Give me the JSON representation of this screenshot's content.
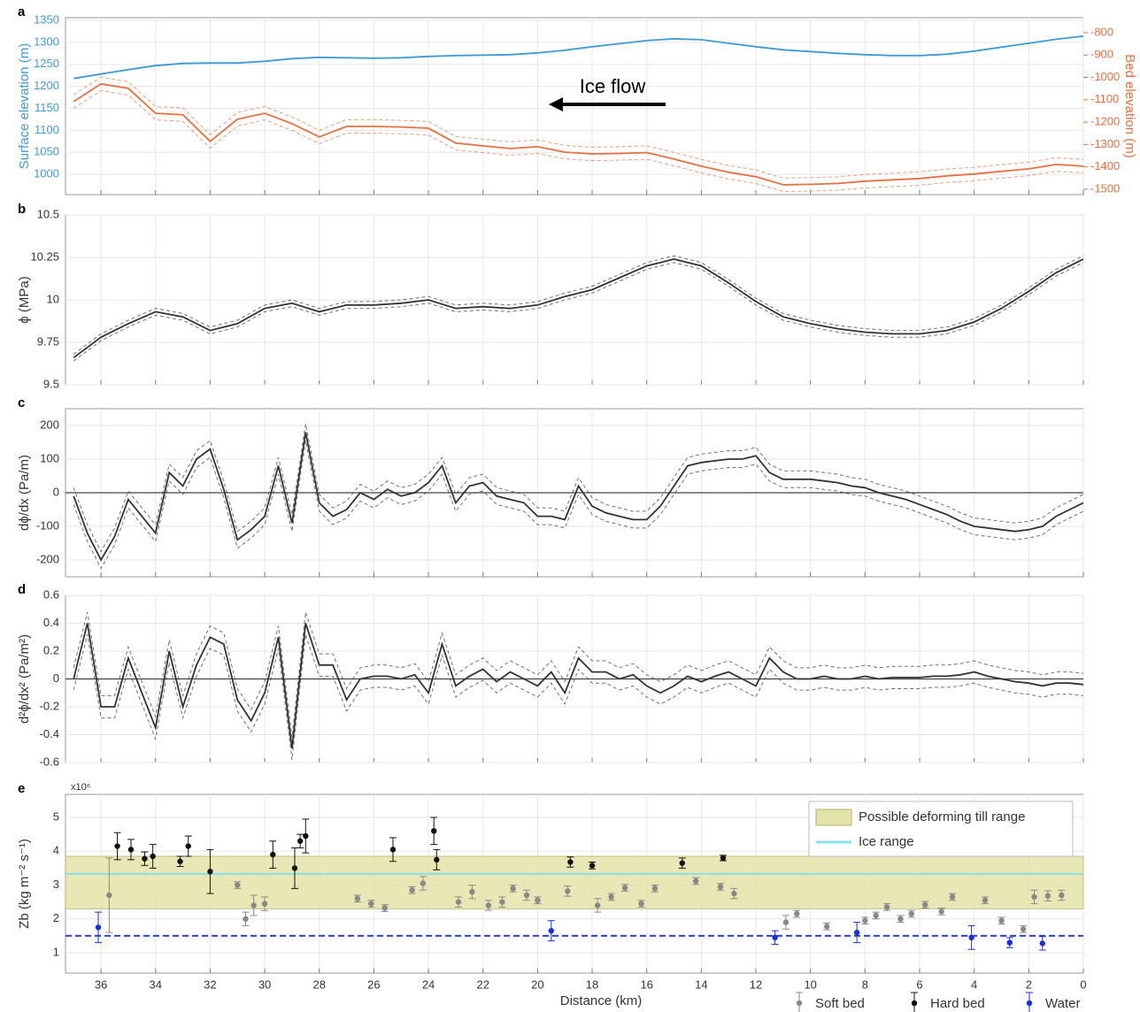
{
  "chart_data": [
    {
      "type": "line",
      "y_label": "Surface elevation (m)",
      "y2_label": "Bed elevation (m)",
      "panel": "a",
      "annotation": "Ice flow",
      "x": [
        37,
        36,
        35,
        34,
        33,
        32,
        31,
        30,
        29,
        28,
        27,
        26,
        25,
        24,
        23,
        22,
        21,
        20,
        19,
        18,
        17,
        16,
        15,
        14,
        13,
        12,
        11,
        10,
        9,
        8,
        7,
        6,
        5,
        4,
        3,
        2,
        1,
        0
      ],
      "series": [
        {
          "axis": "y",
          "color": "#3d9bd6",
          "values": [
            1218,
            1228,
            1238,
            1247,
            1252,
            1253,
            1253,
            1257,
            1263,
            1266,
            1265,
            1264,
            1265,
            1268,
            1270,
            1271,
            1272,
            1276,
            1282,
            1290,
            1297,
            1304,
            1308,
            1306,
            1298,
            1290,
            1283,
            1279,
            1275,
            1272,
            1270,
            1270,
            1273,
            1280,
            1289,
            1298,
            1307,
            1314
          ]
        },
        {
          "axis": "y2",
          "color": "#e8703f",
          "uncertainty": 30,
          "values": [
            -1108,
            -1029,
            -1049,
            -1160,
            -1167,
            -1286,
            -1187,
            -1160,
            -1207,
            -1266,
            -1219,
            -1219,
            -1222,
            -1227,
            -1294,
            -1306,
            -1318,
            -1310,
            -1334,
            -1342,
            -1340,
            -1336,
            -1365,
            -1397,
            -1424,
            -1444,
            -1480,
            -1478,
            -1474,
            -1464,
            -1458,
            -1452,
            -1440,
            -1432,
            -1420,
            -1409,
            -1389,
            -1397
          ]
        }
      ],
      "ylim": [
        954,
        1356
      ],
      "yticks": [
        1000,
        1050,
        1100,
        1150,
        1200,
        1250,
        1300,
        1350
      ],
      "y2lim": [
        -1524,
        -733
      ],
      "y2ticks": [
        -1500,
        -1400,
        -1300,
        -1200,
        -1100,
        -1000,
        -900,
        -800
      ]
    },
    {
      "type": "line",
      "y_label": "ϕ (MPa)",
      "panel": "b",
      "x": [
        37,
        36,
        35,
        34,
        33,
        32,
        31,
        30,
        29,
        28,
        27,
        26,
        25,
        24,
        23,
        22,
        21,
        20,
        19,
        18,
        17,
        16,
        15,
        14,
        13,
        12,
        11,
        10,
        9,
        8,
        7,
        6,
        5,
        4,
        3,
        2,
        1,
        0
      ],
      "series": [
        {
          "color": "#333333",
          "uncertainty": 0.02,
          "values": [
            9.66,
            9.78,
            9.86,
            9.93,
            9.9,
            9.82,
            9.86,
            9.95,
            9.98,
            9.93,
            9.97,
            9.97,
            9.98,
            10.0,
            9.95,
            9.96,
            9.95,
            9.97,
            10.02,
            10.06,
            10.13,
            10.2,
            10.24,
            10.2,
            10.1,
            9.99,
            9.9,
            9.86,
            9.83,
            9.81,
            9.8,
            9.8,
            9.82,
            9.87,
            9.95,
            10.05,
            10.16,
            10.24
          ]
        }
      ],
      "ylim": [
        9.5,
        10.5
      ],
      "yticks": [
        9.5,
        9.75,
        10,
        10.25,
        10.5
      ]
    },
    {
      "type": "line",
      "y_label": "dϕ/dx (Pa/m)",
      "panel": "c",
      "x": [
        37,
        36.5,
        36,
        35.5,
        35,
        34.5,
        34,
        33.5,
        33,
        32.5,
        32,
        31.5,
        31,
        30.5,
        30,
        29.5,
        29,
        28.5,
        28,
        27.5,
        27,
        26.5,
        26,
        25.5,
        25,
        24.5,
        24,
        23.5,
        23,
        22.5,
        22,
        21.5,
        21,
        20.5,
        20,
        19.5,
        19,
        18.5,
        18,
        17.5,
        17,
        16.5,
        16,
        15.5,
        15,
        14.5,
        14,
        13.5,
        13,
        12.5,
        12,
        11.5,
        11,
        10.5,
        10,
        9.5,
        9,
        8.5,
        8,
        7.5,
        7,
        6.5,
        6,
        5.5,
        5,
        4.5,
        4,
        3.5,
        3,
        2.5,
        2,
        1.5,
        1,
        0.5,
        0
      ],
      "series": [
        {
          "color": "#333333",
          "uncertainty": 25,
          "values": [
            -10,
            -120,
            -200,
            -130,
            -20,
            -70,
            -120,
            60,
            20,
            100,
            130,
            10,
            -140,
            -110,
            -70,
            80,
            -90,
            180,
            -30,
            -70,
            -50,
            0,
            -20,
            10,
            -10,
            0,
            30,
            80,
            -30,
            20,
            30,
            -10,
            -20,
            -30,
            -70,
            -70,
            -80,
            20,
            -40,
            -60,
            -70,
            -80,
            -80,
            -40,
            20,
            80,
            90,
            95,
            100,
            100,
            110,
            60,
            40,
            40,
            40,
            35,
            30,
            20,
            15,
            0,
            -10,
            -20,
            -35,
            -50,
            -65,
            -85,
            -100,
            -105,
            -110,
            -115,
            -110,
            -100,
            -70,
            -50,
            -30
          ]
        }
      ],
      "ylim": [
        -250,
        250
      ],
      "yticks": [
        -200,
        -100,
        0,
        100,
        200
      ]
    },
    {
      "type": "line",
      "y_label": "d²ϕ/dx² (Pa/m²)",
      "panel": "d",
      "x": [
        37,
        36.5,
        36,
        35.5,
        35,
        34.5,
        34,
        33.5,
        33,
        32.5,
        32,
        31.5,
        31,
        30.5,
        30,
        29.5,
        29,
        28.5,
        28,
        27.5,
        27,
        26.5,
        26,
        25.5,
        25,
        24.5,
        24,
        23.5,
        23,
        22.5,
        22,
        21.5,
        21,
        20.5,
        20,
        19.5,
        19,
        18.5,
        18,
        17.5,
        17,
        16.5,
        16,
        15.5,
        15,
        14.5,
        14,
        13.5,
        13,
        12.5,
        12,
        11.5,
        11,
        10.5,
        10,
        9.5,
        9,
        8.5,
        8,
        7.5,
        7,
        6.5,
        6,
        5.5,
        5,
        4.5,
        4,
        3.5,
        3,
        2.5,
        2,
        1.5,
        1,
        0.5,
        0
      ],
      "series": [
        {
          "color": "#333333",
          "uncertainty": 0.08,
          "values": [
            0,
            0.4,
            -0.2,
            -0.2,
            0.15,
            -0.1,
            -0.35,
            0.2,
            -0.2,
            0.1,
            0.3,
            0.25,
            -0.15,
            -0.3,
            -0.1,
            0.3,
            -0.5,
            0.4,
            0.1,
            0.1,
            -0.15,
            0,
            0.02,
            0.02,
            0,
            0.03,
            -0.1,
            0.25,
            -0.05,
            0.02,
            0.07,
            -0.02,
            0.05,
            0,
            -0.05,
            0.05,
            -0.1,
            0.15,
            0.05,
            0.05,
            0,
            0.03,
            -0.05,
            -0.1,
            -0.05,
            0.02,
            -0.02,
            0.02,
            0.05,
            0,
            -0.05,
            0.15,
            0.05,
            0,
            0,
            0.02,
            0,
            0,
            0.02,
            0,
            0.01,
            0.01,
            0.01,
            0.02,
            0.02,
            0.03,
            0.05,
            0.02,
            0,
            -0.02,
            -0.03,
            -0.05,
            -0.03,
            -0.03,
            -0.04
          ]
        }
      ],
      "ylim": [
        -0.6,
        0.6
      ],
      "yticks": [
        -0.6,
        -0.4,
        -0.2,
        0,
        0.2,
        0.4,
        0.6
      ]
    },
    {
      "type": "scatter",
      "y_label": "Zb (kg m⁻² s⁻¹)",
      "panel": "e",
      "multiplier": "x10⁶",
      "x_label": "Distance (km)",
      "xlim": [
        37.3,
        0
      ],
      "xticks": [
        36,
        34,
        32,
        30,
        28,
        26,
        24,
        22,
        20,
        18,
        16,
        14,
        12,
        10,
        8,
        6,
        4,
        2,
        0
      ],
      "ylim": [
        0.4,
        5.68
      ],
      "yticks": [
        1,
        2,
        3,
        4,
        5
      ],
      "bands": [
        {
          "label": "Possible deforming till range",
          "range": [
            2.3,
            3.85
          ],
          "color": "#e4e3a8"
        }
      ],
      "reference_lines": [
        {
          "label": "Ice range",
          "value": 3.33,
          "color": "#86e0ee"
        },
        {
          "value": 1.5,
          "color": "#2b3fe8",
          "dashed": true
        }
      ],
      "series": [
        {
          "name": "Soft bed",
          "color": "#888888",
          "x": [
            35.7,
            31,
            30.7,
            30.4,
            30,
            26.6,
            26.1,
            25.6,
            24.6,
            24.2,
            22.9,
            22.4,
            21.8,
            21.3,
            20.9,
            20.4,
            20,
            18.9,
            17.8,
            17.3,
            16.8,
            16.2,
            15.7,
            14.2,
            13.3,
            12.8,
            10.9,
            10.5,
            9.4,
            8,
            7.6,
            7.2,
            6.7,
            6.3,
            5.8,
            5.2,
            4.8,
            3.6,
            3,
            2.2,
            1.8,
            1.3,
            0.8
          ],
          "values": [
            2.7,
            3.0,
            2.0,
            2.4,
            2.45,
            2.6,
            2.45,
            2.32,
            2.85,
            3.05,
            2.5,
            2.8,
            2.4,
            2.5,
            2.9,
            2.7,
            2.55,
            2.82,
            2.4,
            2.65,
            2.92,
            2.45,
            2.9,
            3.12,
            2.95,
            2.75,
            1.9,
            2.15,
            1.78,
            1.95,
            2.1,
            2.35,
            2.0,
            2.15,
            2.42,
            2.22,
            2.65,
            2.55,
            1.95,
            1.7,
            2.65,
            2.68,
            2.7
          ],
          "errors": [
            1.1,
            0.1,
            0.2,
            0.3,
            0.2,
            0.1,
            0.1,
            0.1,
            0.1,
            0.2,
            0.15,
            0.2,
            0.15,
            0.15,
            0.1,
            0.15,
            0.1,
            0.15,
            0.2,
            0.1,
            0.1,
            0.1,
            0.1,
            0.1,
            0.1,
            0.15,
            0.2,
            0.1,
            0.1,
            0.1,
            0.1,
            0.1,
            0.1,
            0.1,
            0.1,
            0.1,
            0.1,
            0.1,
            0.1,
            0.1,
            0.2,
            0.15,
            0.15
          ]
        },
        {
          "name": "Hard bed",
          "color": "#111111",
          "x": [
            35.4,
            34.9,
            34.4,
            34.1,
            33.1,
            32.8,
            32,
            29.7,
            28.9,
            28.7,
            28.5,
            25.3,
            23.8,
            23.7,
            18.8,
            18,
            14.7,
            13.2
          ],
          "values": [
            4.15,
            4.05,
            3.78,
            3.85,
            3.7,
            4.15,
            3.4,
            3.9,
            3.5,
            4.3,
            4.45,
            4.05,
            4.6,
            3.75,
            3.68,
            3.58,
            3.65,
            3.8
          ],
          "errors": [
            0.4,
            0.3,
            0.2,
            0.35,
            0.15,
            0.3,
            0.65,
            0.4,
            0.6,
            0.2,
            0.5,
            0.35,
            0.4,
            0.3,
            0.15,
            0.1,
            0.15,
            0.08
          ]
        },
        {
          "name": "Water",
          "color": "#1a2ee6",
          "x": [
            36.1,
            19.5,
            11.3,
            8.3,
            4.1,
            2.7,
            1.5
          ],
          "values": [
            1.75,
            1.65,
            1.45,
            1.6,
            1.45,
            1.3,
            1.28
          ],
          "errors": [
            0.45,
            0.3,
            0.2,
            0.3,
            0.35,
            0.15,
            0.2
          ]
        }
      ]
    }
  ]
}
